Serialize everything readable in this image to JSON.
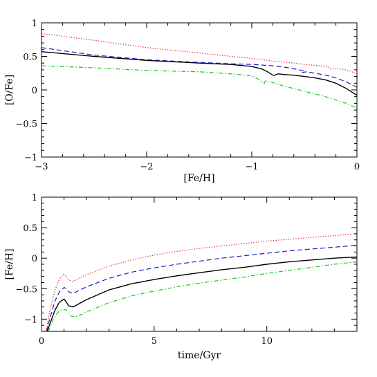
{
  "chart_data": [
    {
      "type": "line",
      "xlabel": "[Fe/H]",
      "ylabel": "[O/Fe]",
      "xlim": [
        -3,
        0
      ],
      "ylim": [
        -1,
        1
      ],
      "xticks": [
        -3,
        -2,
        -1,
        0
      ],
      "xtick_labels": [
        "−3",
        "−2",
        "−1",
        "0"
      ],
      "yticks": [
        -1,
        -0.5,
        0,
        0.5,
        1
      ],
      "ytick_labels": [
        "−1",
        "−0.5",
        "0",
        "0.5",
        "1"
      ],
      "grid": false,
      "series": [
        {
          "style": "solid",
          "color": "#000000",
          "x": [
            -3.0,
            -2.5,
            -2.0,
            -1.5,
            -1.2,
            -1.0,
            -0.9,
            -0.85,
            -0.8,
            -0.78,
            -0.75,
            -0.7,
            -0.6,
            -0.5,
            -0.4,
            -0.3,
            -0.2,
            -0.1,
            0.0
          ],
          "y": [
            0.57,
            0.5,
            0.44,
            0.4,
            0.38,
            0.35,
            0.31,
            0.27,
            0.22,
            0.22,
            0.24,
            0.23,
            0.22,
            0.2,
            0.18,
            0.15,
            0.1,
            0.02,
            -0.08
          ]
        },
        {
          "style": "dashed",
          "color": "#1a1acc",
          "x": [
            -3.0,
            -2.5,
            -2.0,
            -1.5,
            -1.2,
            -1.0,
            -0.8,
            -0.65,
            -0.55,
            -0.5,
            -0.52,
            -0.48,
            -0.4,
            -0.3,
            -0.2,
            -0.1,
            0.0
          ],
          "y": [
            0.63,
            0.52,
            0.45,
            0.41,
            0.39,
            0.38,
            0.36,
            0.33,
            0.3,
            0.28,
            0.26,
            0.27,
            0.25,
            0.22,
            0.18,
            0.12,
            0.04
          ]
        },
        {
          "style": "dotted",
          "color": "#dd1111",
          "x": [
            -3.0,
            -2.5,
            -2.0,
            -1.5,
            -1.2,
            -1.0,
            -0.8,
            -0.6,
            -0.5,
            -0.35,
            -0.27,
            -0.25,
            -0.2,
            -0.1,
            0.0
          ],
          "y": [
            0.84,
            0.74,
            0.63,
            0.55,
            0.5,
            0.47,
            0.43,
            0.4,
            0.38,
            0.36,
            0.34,
            0.31,
            0.32,
            0.3,
            0.24
          ]
        },
        {
          "style": "dashdot",
          "color": "#11cc11",
          "x": [
            -3.0,
            -2.5,
            -2.0,
            -1.5,
            -1.2,
            -1.0,
            -0.95,
            -0.9,
            -0.88,
            -0.87,
            -0.8,
            -0.7,
            -0.5,
            -0.3,
            -0.1,
            0.0
          ],
          "y": [
            0.36,
            0.33,
            0.29,
            0.27,
            0.24,
            0.21,
            0.17,
            0.12,
            0.1,
            0.14,
            0.11,
            0.06,
            -0.02,
            -0.1,
            -0.2,
            -0.27
          ]
        }
      ]
    },
    {
      "type": "line",
      "xlabel": "time/Gyr",
      "ylabel": "[Fe/H]",
      "xlim": [
        0,
        14
      ],
      "ylim": [
        -1.2,
        1
      ],
      "xticks": [
        0,
        5,
        10
      ],
      "xtick_labels": [
        "0",
        "5",
        "10"
      ],
      "yticks": [
        -1,
        -0.5,
        0,
        0.5,
        1
      ],
      "ytick_labels": [
        "−1",
        "−0.5",
        "0",
        "0.5",
        "1"
      ],
      "grid": false,
      "series": [
        {
          "style": "solid",
          "color": "#000000",
          "x": [
            0.25,
            0.4,
            0.6,
            0.8,
            1.0,
            1.1,
            1.2,
            1.4,
            1.6,
            2.0,
            3.0,
            4.0,
            5.0,
            6.0,
            7.0,
            8.0,
            9.0,
            10.0,
            11.0,
            12.0,
            13.0,
            14.0
          ],
          "y": [
            -1.2,
            -1.05,
            -0.85,
            -0.72,
            -0.67,
            -0.72,
            -0.78,
            -0.8,
            -0.76,
            -0.68,
            -0.52,
            -0.42,
            -0.35,
            -0.29,
            -0.24,
            -0.19,
            -0.15,
            -0.1,
            -0.06,
            -0.03,
            0.0,
            0.02
          ]
        },
        {
          "style": "dashed",
          "color": "#1a1acc",
          "x": [
            0.22,
            0.4,
            0.6,
            0.8,
            1.0,
            1.1,
            1.2,
            1.4,
            1.6,
            2.0,
            3.0,
            4.0,
            5.0,
            6.0,
            7.0,
            8.0,
            9.0,
            10.0,
            11.0,
            12.0,
            13.0,
            14.0
          ],
          "y": [
            -1.2,
            -0.95,
            -0.7,
            -0.55,
            -0.48,
            -0.5,
            -0.55,
            -0.58,
            -0.54,
            -0.47,
            -0.33,
            -0.23,
            -0.16,
            -0.1,
            -0.05,
            0.0,
            0.04,
            0.08,
            0.12,
            0.15,
            0.18,
            0.21
          ]
        },
        {
          "style": "dotted",
          "color": "#dd1111",
          "x": [
            0.2,
            0.4,
            0.6,
            0.8,
            1.0,
            1.1,
            1.2,
            1.4,
            1.6,
            2.0,
            3.0,
            4.0,
            5.0,
            6.0,
            7.0,
            8.0,
            9.0,
            10.0,
            11.0,
            12.0,
            13.0,
            14.0
          ],
          "y": [
            -1.2,
            -0.8,
            -0.52,
            -0.34,
            -0.26,
            -0.3,
            -0.36,
            -0.38,
            -0.34,
            -0.27,
            -0.13,
            -0.03,
            0.05,
            0.11,
            0.16,
            0.2,
            0.24,
            0.28,
            0.31,
            0.34,
            0.37,
            0.4
          ]
        },
        {
          "style": "dashdot",
          "color": "#11cc11",
          "x": [
            0.3,
            0.5,
            0.7,
            0.9,
            1.1,
            1.2,
            1.3,
            1.5,
            1.8,
            2.0,
            3.0,
            4.0,
            5.0,
            6.0,
            7.0,
            8.0,
            9.0,
            10.0,
            11.0,
            12.0,
            13.0,
            14.0
          ],
          "y": [
            -1.2,
            -1.02,
            -0.9,
            -0.84,
            -0.85,
            -0.9,
            -0.95,
            -0.96,
            -0.92,
            -0.88,
            -0.73,
            -0.62,
            -0.54,
            -0.47,
            -0.41,
            -0.36,
            -0.31,
            -0.25,
            -0.2,
            -0.15,
            -0.1,
            -0.06
          ]
        }
      ]
    }
  ]
}
